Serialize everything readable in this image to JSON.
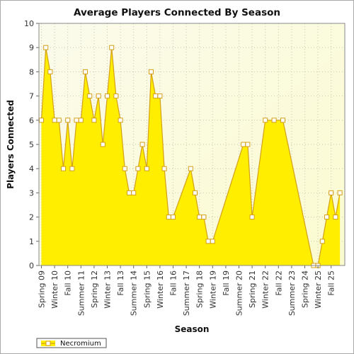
{
  "chart_data": {
    "type": "area",
    "title": "Average Players Connected By Season",
    "xlabel": "Season",
    "ylabel": "Players Connected",
    "ylim": [
      0,
      10
    ],
    "yticks": [
      0,
      1,
      2,
      3,
      4,
      5,
      6,
      7,
      8,
      9,
      10
    ],
    "tick_labels": [
      "Spring 09",
      "Winter 10",
      "Fall 10",
      "Summer 11",
      "Spring 12",
      "Winter 13",
      "Fall 13",
      "Summer 14",
      "Spring 15",
      "Winter 16",
      "Fall 16",
      "Summer 17",
      "Spring 18",
      "Winter 19",
      "Fall 19",
      "Summer 20",
      "Spring 21",
      "Winter 22",
      "Fall 22",
      "Summer 23",
      "Spring 24",
      "Winter 25",
      "Fall 25"
    ],
    "grid": true,
    "legend": "bottom-left",
    "series": [
      {
        "name": "Necromium",
        "color": "#ffee00",
        "line_color": "#d4a017",
        "points": [
          {
            "t": 0,
            "v": 6
          },
          {
            "t": 1,
            "v": 9
          },
          {
            "t": 2,
            "v": 8
          },
          {
            "t": 3,
            "v": 6
          },
          {
            "t": 4,
            "v": 6
          },
          {
            "t": 5,
            "v": 4
          },
          {
            "t": 6,
            "v": 6
          },
          {
            "t": 7,
            "v": 4
          },
          {
            "t": 8,
            "v": 6
          },
          {
            "t": 9,
            "v": 6
          },
          {
            "t": 10,
            "v": 8
          },
          {
            "t": 11,
            "v": 7
          },
          {
            "t": 12,
            "v": 6
          },
          {
            "t": 13,
            "v": 7
          },
          {
            "t": 14,
            "v": 5
          },
          {
            "t": 15,
            "v": 7
          },
          {
            "t": 16,
            "v": 9
          },
          {
            "t": 17,
            "v": 7
          },
          {
            "t": 18,
            "v": 6
          },
          {
            "t": 19,
            "v": 4
          },
          {
            "t": 20,
            "v": 3
          },
          {
            "t": 21,
            "v": 3
          },
          {
            "t": 22,
            "v": 4
          },
          {
            "t": 23,
            "v": 5
          },
          {
            "t": 24,
            "v": 4
          },
          {
            "t": 25,
            "v": 8
          },
          {
            "t": 26,
            "v": 7
          },
          {
            "t": 27,
            "v": 7
          },
          {
            "t": 28,
            "v": 4
          },
          {
            "t": 29,
            "v": 2
          },
          {
            "t": 30,
            "v": 2
          },
          {
            "t": 34,
            "v": 4
          },
          {
            "t": 35,
            "v": 3
          },
          {
            "t": 36,
            "v": 2
          },
          {
            "t": 37,
            "v": 2
          },
          {
            "t": 38,
            "v": 1
          },
          {
            "t": 39,
            "v": 1
          },
          {
            "t": 46,
            "v": 5
          },
          {
            "t": 47,
            "v": 5
          },
          {
            "t": 48,
            "v": 2
          },
          {
            "t": 51,
            "v": 6
          },
          {
            "t": 53,
            "v": 6
          },
          {
            "t": 55,
            "v": 6
          },
          {
            "t": 62,
            "v": 0
          },
          {
            "t": 63,
            "v": 0
          },
          {
            "t": 64,
            "v": 1
          },
          {
            "t": 65,
            "v": 2
          },
          {
            "t": 66,
            "v": 3
          },
          {
            "t": 67,
            "v": 2
          },
          {
            "t": 68,
            "v": 3
          }
        ]
      }
    ]
  }
}
